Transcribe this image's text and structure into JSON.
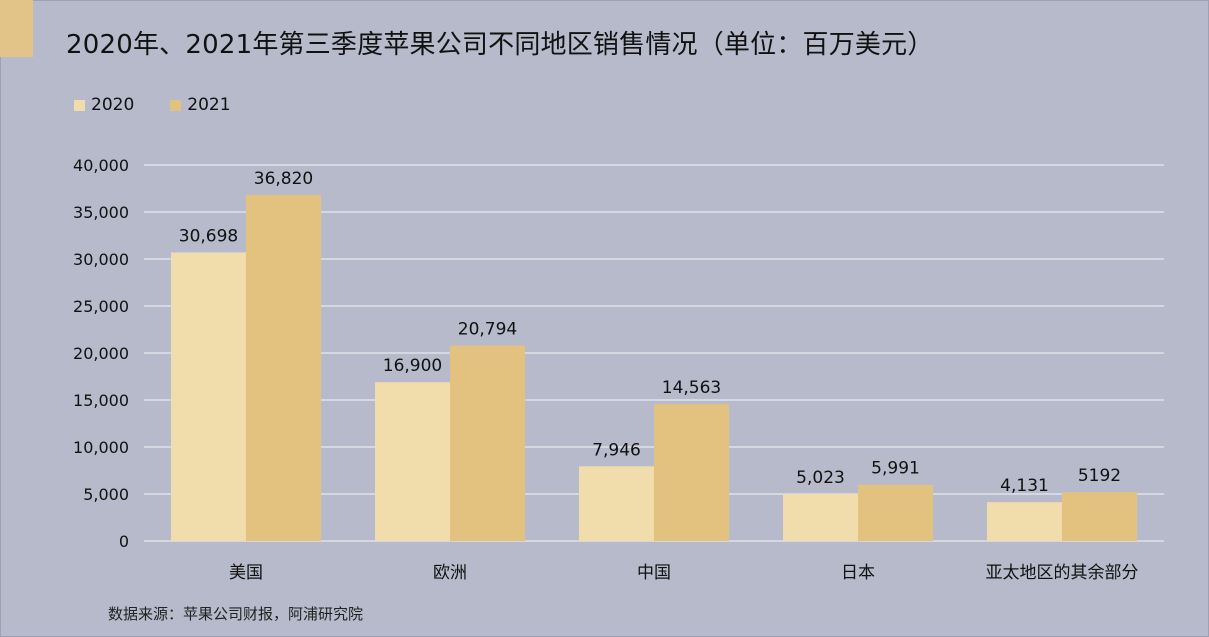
{
  "title": "2020年、2021年第三季度苹果公司不同地区销售情况（单位：百万美元）",
  "source": "数据来源：苹果公司财报，阿浦研究院",
  "colors": {
    "background": "#b6bacb",
    "accent": "#e2c489",
    "series_2020": "#f1dcab",
    "series_2021": "#e2c27e",
    "grid": "#e8e9ee"
  },
  "chart_data": {
    "type": "bar",
    "categories": [
      "美国",
      "欧洲",
      "中国",
      "日本",
      "亚太地区的其余部分"
    ],
    "series": [
      {
        "name": "2020",
        "values": [
          30698,
          16900,
          7946,
          5023,
          4131
        ],
        "labels": [
          "30,698",
          "16,900",
          "7,946",
          "5,023",
          "4,131"
        ]
      },
      {
        "name": "2021",
        "values": [
          36820,
          20794,
          14563,
          5991,
          5192
        ],
        "labels": [
          "36,820",
          "20,794",
          "14,563",
          "5,991",
          "5192"
        ]
      }
    ],
    "yticks": [
      "0",
      "5,000",
      "10,000",
      "15,000",
      "20,000",
      "25,000",
      "30,000",
      "35,000",
      "40,000"
    ],
    "ylim": [
      0,
      40000
    ],
    "grid": true,
    "legend": "top-left"
  }
}
